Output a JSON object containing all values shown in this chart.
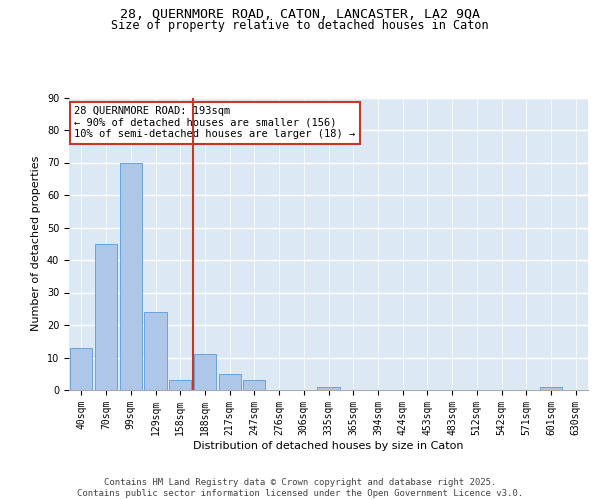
{
  "title_line1": "28, QUERNMORE ROAD, CATON, LANCASTER, LA2 9QA",
  "title_line2": "Size of property relative to detached houses in Caton",
  "xlabel": "Distribution of detached houses by size in Caton",
  "ylabel": "Number of detached properties",
  "categories": [
    "40sqm",
    "70sqm",
    "99sqm",
    "129sqm",
    "158sqm",
    "188sqm",
    "217sqm",
    "247sqm",
    "276sqm",
    "306sqm",
    "335sqm",
    "365sqm",
    "394sqm",
    "424sqm",
    "453sqm",
    "483sqm",
    "512sqm",
    "542sqm",
    "571sqm",
    "601sqm",
    "630sqm"
  ],
  "values": [
    13,
    45,
    70,
    24,
    3,
    11,
    5,
    3,
    0,
    0,
    1,
    0,
    0,
    0,
    0,
    0,
    0,
    0,
    0,
    1,
    0
  ],
  "bar_color": "#aec6e8",
  "bar_edge_color": "#5b9bd5",
  "vline_x": 4.5,
  "vline_color": "#c0392b",
  "annotation_text": "28 QUERNMORE ROAD: 193sqm\n← 90% of detached houses are smaller (156)\n10% of semi-detached houses are larger (18) →",
  "annotation_box_color": "white",
  "annotation_box_edge_color": "#c0392b",
  "ylim": [
    0,
    90
  ],
  "yticks": [
    0,
    10,
    20,
    30,
    40,
    50,
    60,
    70,
    80,
    90
  ],
  "background_color": "#dce9f5",
  "grid_color": "white",
  "footer_text": "Contains HM Land Registry data © Crown copyright and database right 2025.\nContains public sector information licensed under the Open Government Licence v3.0.",
  "title_fontsize": 9.5,
  "subtitle_fontsize": 8.5,
  "axis_label_fontsize": 8,
  "tick_fontsize": 7,
  "annotation_fontsize": 7.5,
  "footer_fontsize": 6.5
}
